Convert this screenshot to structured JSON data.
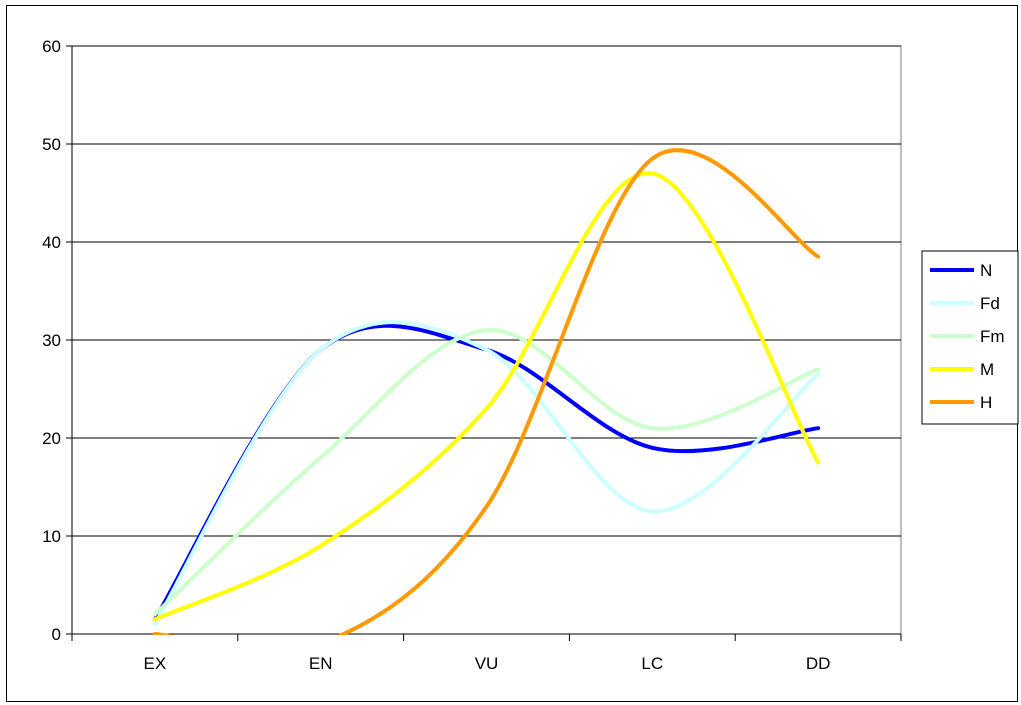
{
  "chart_data": {
    "type": "line",
    "smooth": true,
    "categories": [
      "EX",
      "EN",
      "VU",
      "LC",
      "DD"
    ],
    "ylim": [
      0,
      60
    ],
    "yticks": [
      0,
      10,
      20,
      30,
      40,
      50,
      60
    ],
    "grid": true,
    "legend_position": "right",
    "title": "",
    "xlabel": "",
    "ylabel": "",
    "series": [
      {
        "name": "N",
        "color": "#0000ff",
        "values": [
          1.5,
          29,
          29,
          19,
          21
        ]
      },
      {
        "name": "Fd",
        "color": "#ccffff",
        "values": [
          1,
          29,
          29,
          12.5,
          26.5
        ]
      },
      {
        "name": "Fm",
        "color": "#ccffcc",
        "values": [
          2,
          18,
          31,
          21,
          27
        ]
      },
      {
        "name": "M",
        "color": "#ffff00",
        "values": [
          1.5,
          9,
          23,
          47,
          17.5
        ]
      },
      {
        "name": "H",
        "color": "#ff9900",
        "values": [
          0,
          -1,
          13,
          48.5,
          38.5
        ]
      }
    ]
  }
}
